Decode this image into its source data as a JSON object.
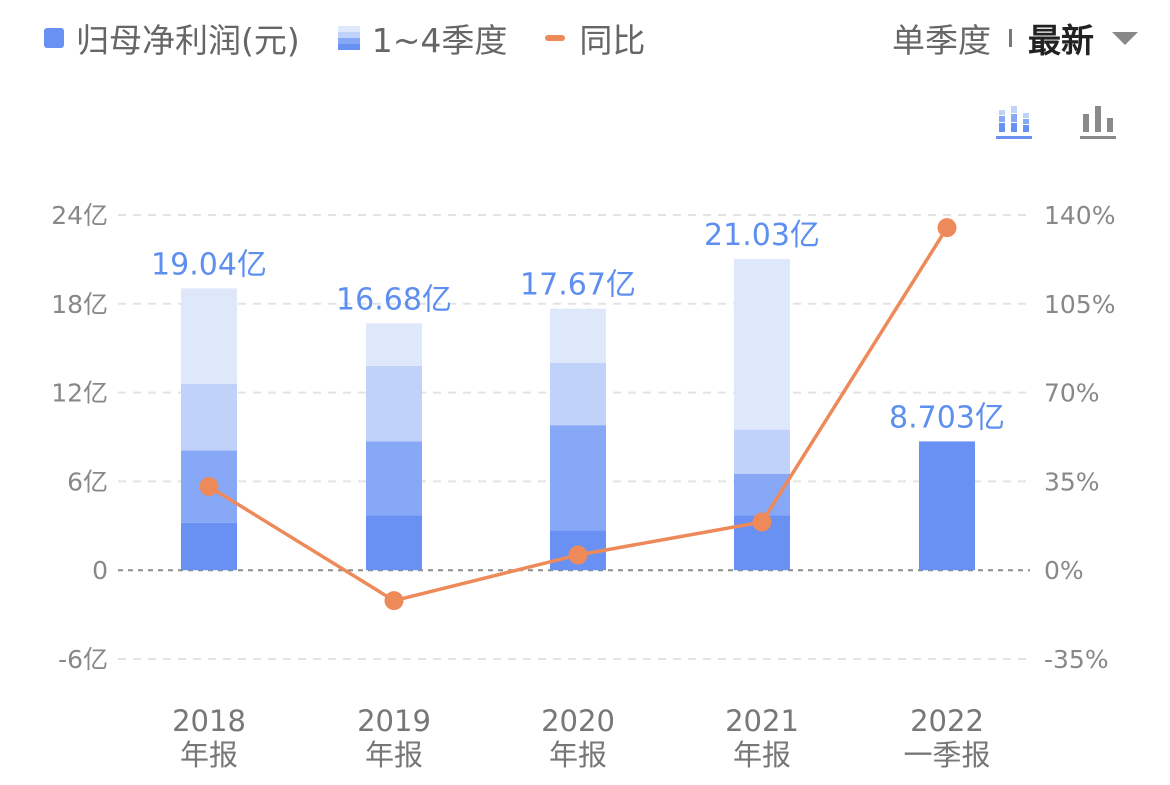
{
  "legend": {
    "net_profit": "归母净利润(元)",
    "quarters": "1~4季度",
    "yoy": "同比"
  },
  "period_selector": {
    "mode": "单季度",
    "latest": "最新"
  },
  "icons": {
    "stacked_toggle": "stacked-bar-chart-icon",
    "plain_toggle": "bar-chart-icon"
  },
  "colors": {
    "q1": "#6891f3",
    "q2": "#87a8f6",
    "q3": "#c0d2f9",
    "q4": "#dfe7fb",
    "line": "#ee8a5a",
    "label": "#5d8ff0"
  },
  "chart_data": {
    "type": "bar",
    "stacked": true,
    "categories": [
      [
        "2018",
        "年报"
      ],
      [
        "2019",
        "年报"
      ],
      [
        "2020",
        "年报"
      ],
      [
        "2021",
        "年报"
      ],
      [
        "2022",
        "一季报"
      ]
    ],
    "totals": [
      19.04,
      16.68,
      17.67,
      21.03,
      8.703
    ],
    "total_labels": [
      "19.04亿",
      "16.68亿",
      "17.67亿",
      "21.03亿",
      "8.703亿"
    ],
    "quarter_stacks": [
      [
        3.2,
        4.9,
        4.5,
        6.44
      ],
      [
        3.7,
        5.0,
        5.1,
        2.88
      ],
      [
        2.7,
        7.1,
        4.2,
        3.67
      ],
      [
        3.7,
        2.8,
        3.0,
        11.53
      ],
      [
        8.703
      ]
    ],
    "series": [
      {
        "name": "同比",
        "type": "line",
        "axis": "right",
        "values": [
          33,
          -12,
          6,
          19,
          135
        ]
      }
    ],
    "y_left": {
      "min": -6,
      "max": 24,
      "ticks": [
        24,
        18,
        12,
        6,
        0,
        -6
      ],
      "labels": [
        "24亿",
        "18亿",
        "12亿",
        "6亿",
        "0",
        "-6亿"
      ]
    },
    "y_right": {
      "min": -35,
      "max": 140,
      "ticks": [
        140,
        105,
        70,
        35,
        0,
        -35
      ],
      "labels": [
        "140%",
        "105%",
        "70%",
        "35%",
        "0%",
        "-35%"
      ]
    },
    "grid": true
  }
}
